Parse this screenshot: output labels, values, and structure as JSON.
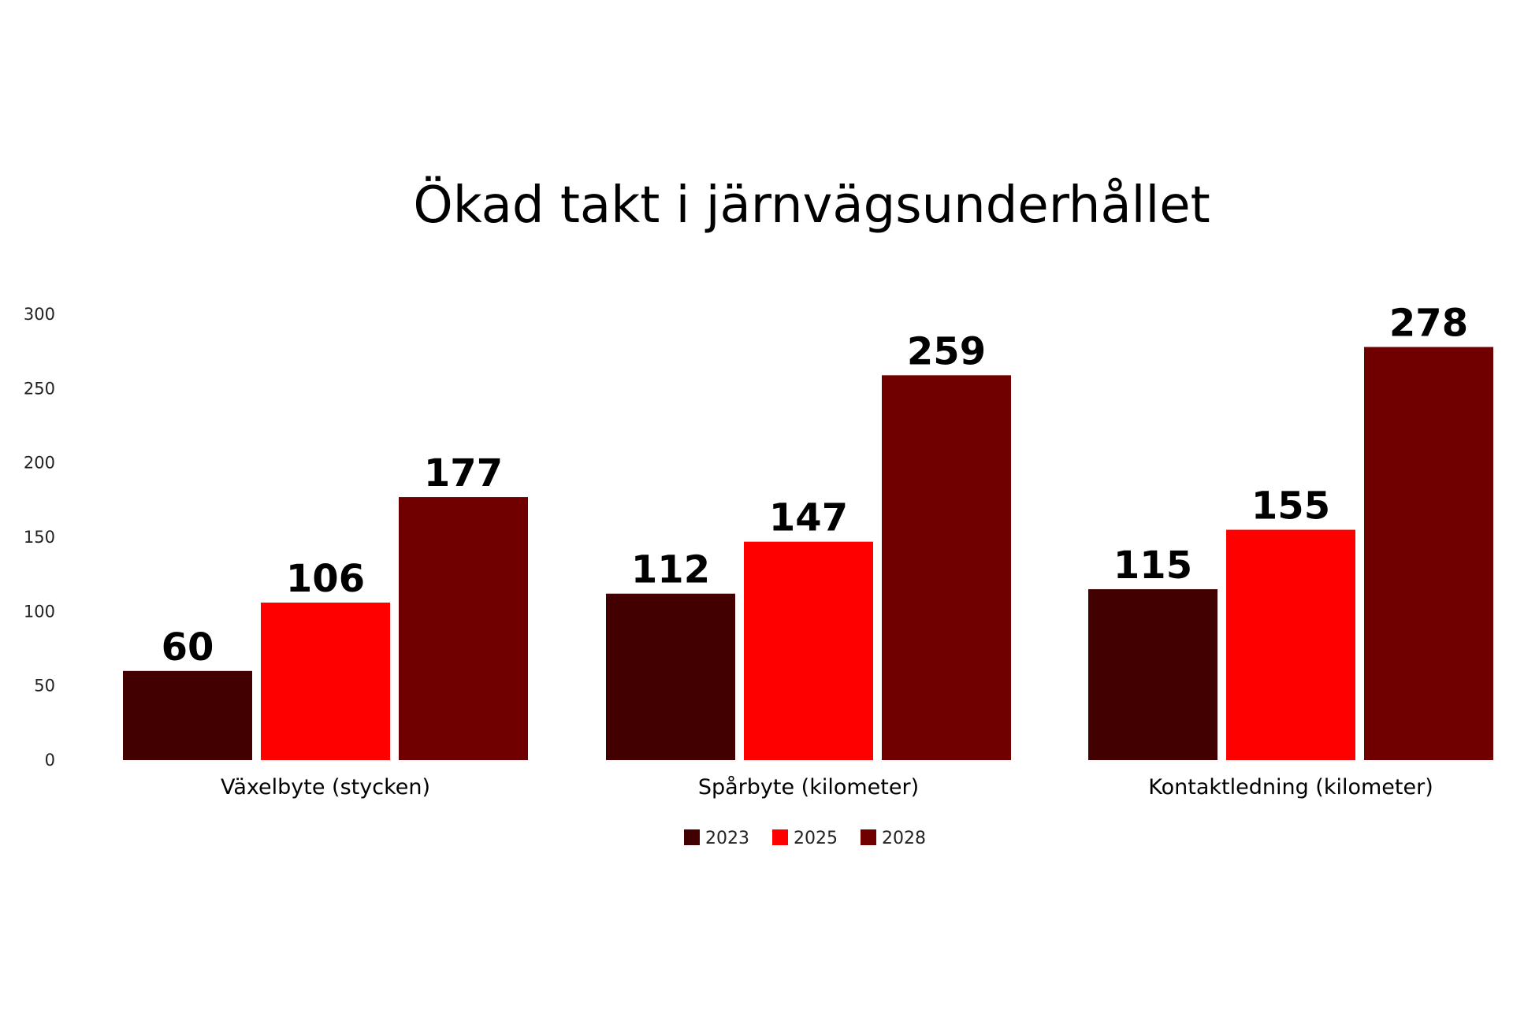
{
  "chart_data": {
    "type": "bar",
    "title": "Ökad takt i järnvägsunderhållet",
    "categories": [
      "Växelbyte (stycken)",
      "Spårbyte (kilometer)",
      "Kontaktledning (kilometer)"
    ],
    "series": [
      {
        "name": "2023",
        "color": "#420000",
        "values": [
          60,
          112,
          115
        ]
      },
      {
        "name": "2025",
        "color": "#ff0000",
        "values": [
          106,
          147,
          155
        ]
      },
      {
        "name": "2028",
        "color": "#700000",
        "values": [
          177,
          259,
          278
        ]
      }
    ],
    "yticks": [
      "0",
      "50",
      "100",
      "150",
      "200",
      "250",
      "300"
    ],
    "ylim": [
      0,
      300
    ],
    "grid": false,
    "legend_position": "bottom"
  }
}
